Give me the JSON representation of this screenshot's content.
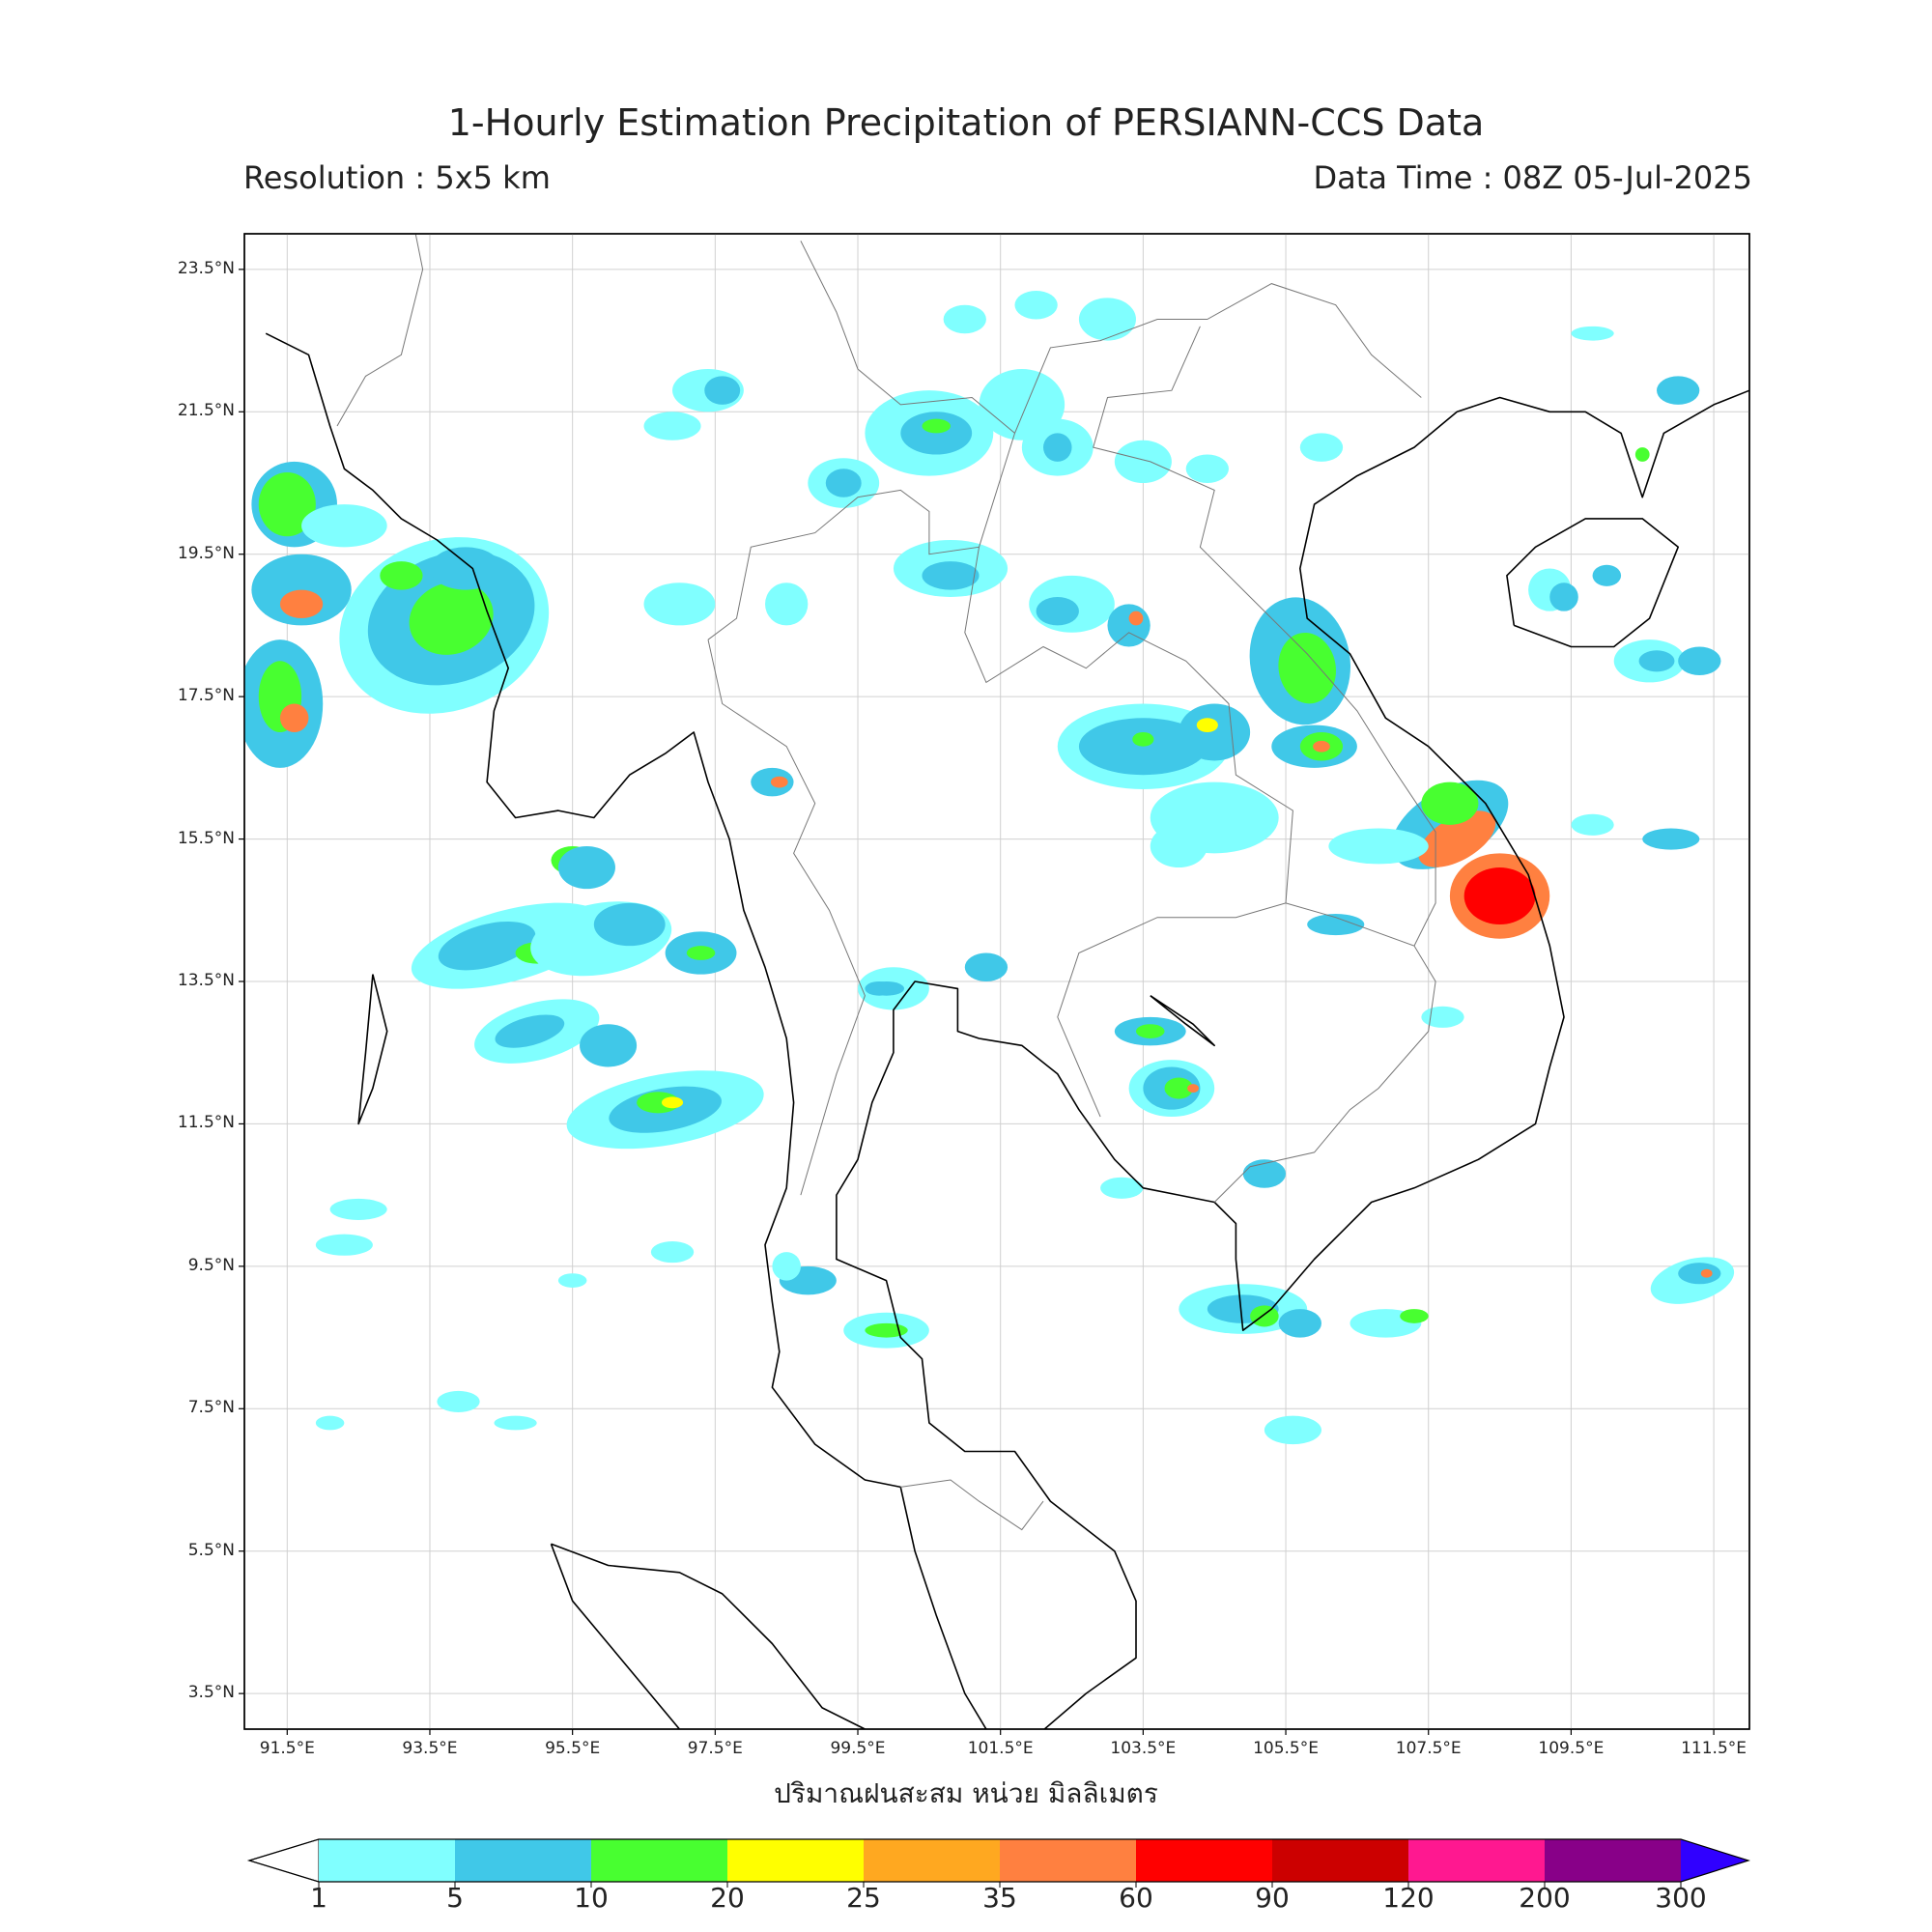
{
  "header": {
    "title": "1-Hourly Estimation Precipitation of PERSIANN-CCS Data",
    "resolution": "Resolution : 5x5 km",
    "data_time": "Data Time : 08Z 05-Jul-2025"
  },
  "map": {
    "lat_labels": [
      "23.5°N",
      "21.5°N",
      "19.5°N",
      "17.5°N",
      "15.5°N",
      "13.5°N",
      "11.5°N",
      "9.5°N",
      "7.5°N",
      "5.5°N",
      "3.5°N"
    ],
    "lon_labels": [
      "91.5°E",
      "93.5°E",
      "95.5°E",
      "97.5°E",
      "99.5°E",
      "101.5°E",
      "103.5°E",
      "105.5°E",
      "107.5°E",
      "109.5°E",
      "111.5°E"
    ],
    "lat_range": [
      3.0,
      24.0
    ],
    "lon_range": [
      90.9,
      112.0
    ],
    "colors": {
      "coast": "#000000",
      "border": "#777777",
      "grid": "#d0d0d0"
    }
  },
  "colorbar": {
    "unit_label": "ปริมาณฝนสะสม หน่วย มิลลิเมตร",
    "ticks": [
      "1",
      "5",
      "10",
      "20",
      "25",
      "35",
      "60",
      "90",
      "120",
      "200",
      "300"
    ],
    "colors": [
      "#80ffff",
      "#40c8e8",
      "#48ff30",
      "#ffff00",
      "#ffa820",
      "#ff8040",
      "#ff0000",
      "#cc0000",
      "#ff1890",
      "#880088"
    ],
    "over_color": "#3000ff"
  }
}
